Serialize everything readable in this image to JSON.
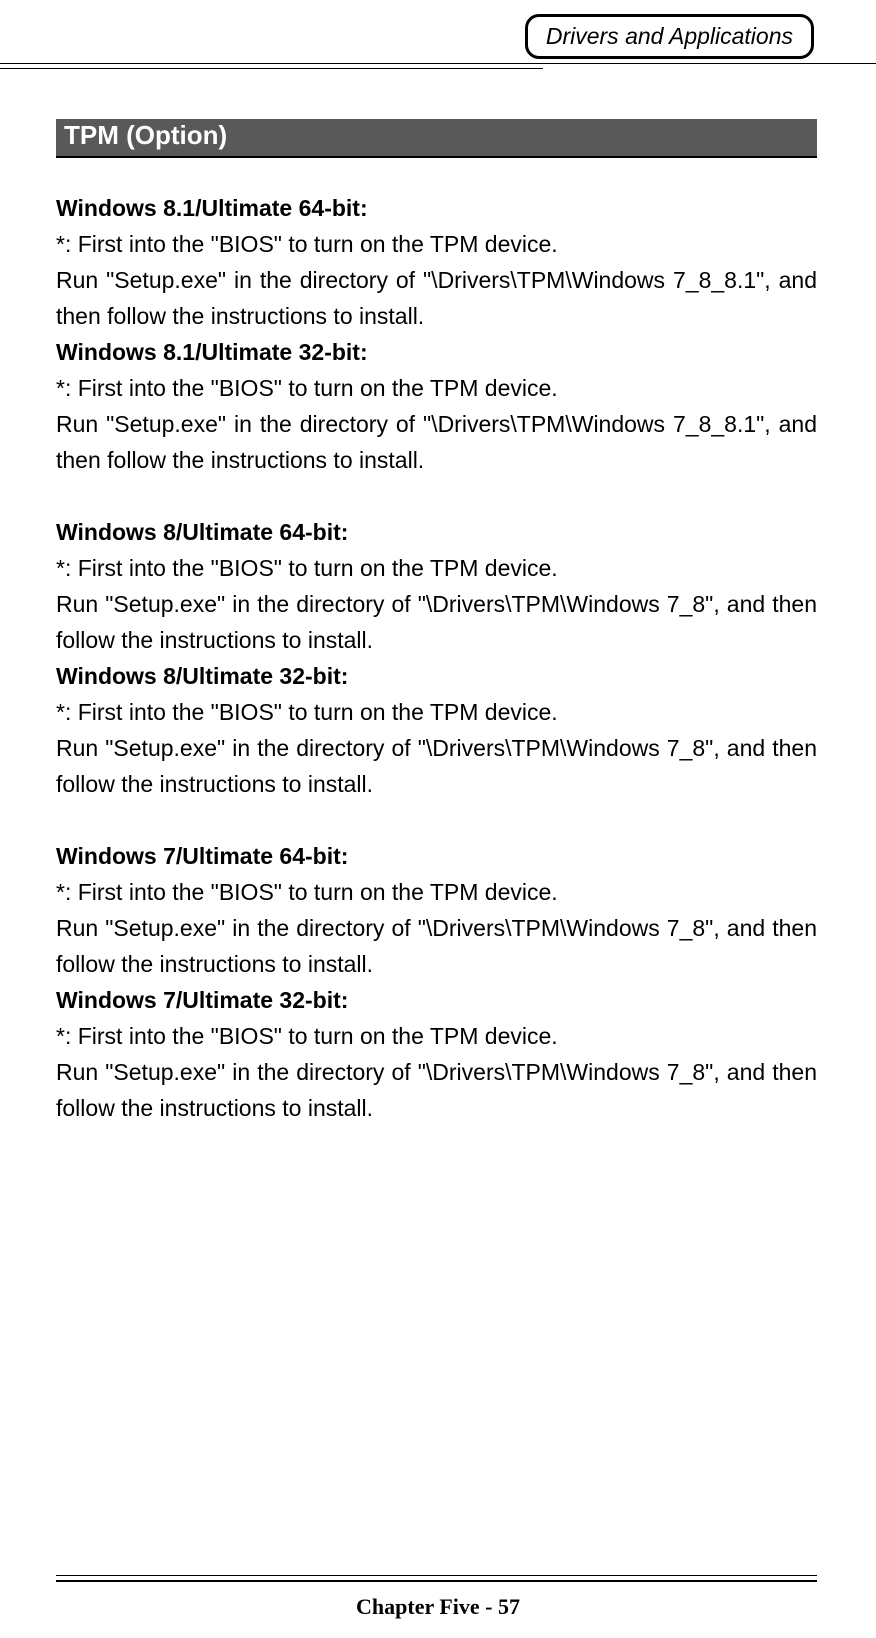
{
  "colors": {
    "page_bg": "#ffffff",
    "text": "#000000",
    "section_bg": "#595959",
    "section_text": "#ffffff",
    "rule": "#000000"
  },
  "typography": {
    "body_font": "Arial",
    "body_size_pt": 17,
    "header_tab_italic": true,
    "footer_font": "Times New Roman",
    "footer_bold": true
  },
  "header": {
    "tab_label": "Drivers and Applications"
  },
  "section": {
    "title": " TPM (Option)"
  },
  "groups": [
    {
      "items": [
        {
          "heading": "Windows 8.1/Ultimate 64-bit:",
          "note": "*: First into the \"BIOS\" to turn on the TPM device.",
          "body": "Run \"Setup.exe\" in the directory of \"\\Drivers\\TPM\\Windows 7_8_8.1\", and then follow the instructions to install."
        },
        {
          "heading": "Windows 8.1/Ultimate 32-bit:",
          "note": "*: First into the \"BIOS\" to turn on the TPM device.",
          "body": "Run \"Setup.exe\" in the directory of \"\\Drivers\\TPM\\Windows 7_8_8.1\", and then follow the instructions to install."
        }
      ]
    },
    {
      "items": [
        {
          "heading": "Windows 8/Ultimate 64-bit:",
          "note": "*: First into the \"BIOS\" to turn on the TPM device.",
          "body": "Run \"Setup.exe\" in the directory of \"\\Drivers\\TPM\\Windows 7_8\", and then follow the instructions to install."
        },
        {
          "heading": "Windows 8/Ultimate 32-bit:",
          "note": "*: First into the \"BIOS\" to turn on the TPM device.",
          "body": "Run \"Setup.exe\" in the directory of \"\\Drivers\\TPM\\Windows 7_8\", and then follow the instructions to install."
        }
      ]
    },
    {
      "items": [
        {
          "heading": "Windows 7/Ultimate 64-bit:",
          "note": "*: First into the \"BIOS\" to turn on the TPM device.",
          "body": "Run \"Setup.exe\" in the directory of \"\\Drivers\\TPM\\Windows 7_8\", and then follow the instructions to install."
        },
        {
          "heading": "Windows 7/Ultimate 32-bit:",
          "note": "*: First into the \"BIOS\" to turn on the TPM device.",
          "body": "Run \"Setup.exe\" in the directory of \"\\Drivers\\TPM\\Windows 7_8\", and then follow the instructions to install."
        }
      ]
    }
  ],
  "footer": {
    "text": "Chapter Five - 57"
  }
}
